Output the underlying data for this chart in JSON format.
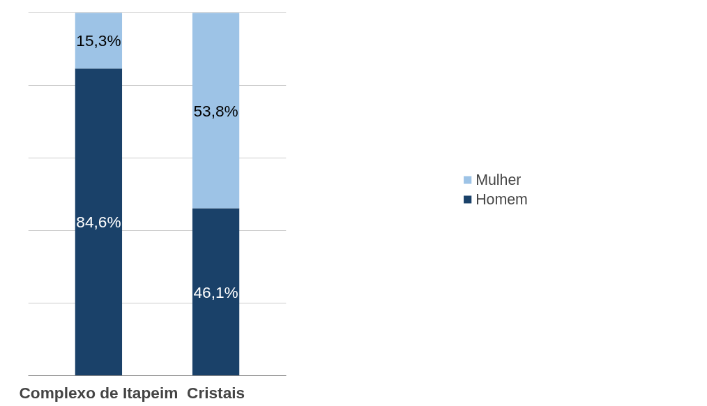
{
  "chart_data": {
    "type": "bar",
    "stacked": true,
    "categories": [
      "Complexo de Itapeim",
      "Cristais"
    ],
    "series": [
      {
        "name": "Homem",
        "color": "#1a4169",
        "values": [
          84.6,
          46.1
        ],
        "value_labels": [
          "84,6%",
          "46,1%"
        ]
      },
      {
        "name": "Mulher",
        "color": "#9dc3e6",
        "values": [
          15.3,
          53.8
        ],
        "value_labels": [
          "15,3%",
          "53,8%"
        ]
      }
    ],
    "grid": "y",
    "tick_labels": "x",
    "legend": "right"
  }
}
